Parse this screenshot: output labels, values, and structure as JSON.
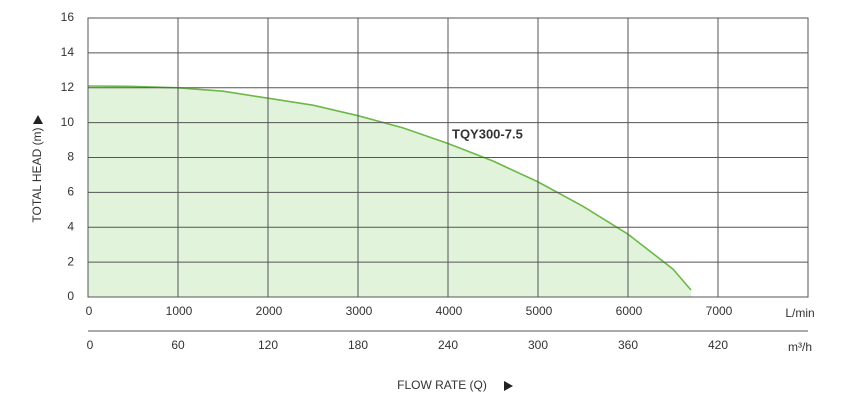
{
  "chart_data": {
    "type": "area",
    "xlabel": "FLOW RATE (Q)",
    "ylabel": "TOTAL HEAD (m)",
    "x_unit": "L/min",
    "x2_unit": "m³/h",
    "x": [
      0,
      500,
      1000,
      1500,
      2000,
      2500,
      3000,
      3500,
      4000,
      4500,
      5000,
      5500,
      6000,
      6500,
      6700
    ],
    "series": [
      {
        "name": "TQY300-7.5",
        "color": "#6db84a",
        "fill": "#e1f3da",
        "values": [
          12.1,
          12.08,
          12.0,
          11.8,
          11.4,
          11.0,
          10.4,
          9.7,
          8.8,
          7.8,
          6.6,
          5.2,
          3.6,
          1.6,
          0.4
        ]
      }
    ],
    "xlim": [
      0,
      8000
    ],
    "xticks": [
      0,
      1000,
      2000,
      3000,
      4000,
      5000,
      6000,
      7000
    ],
    "x2lim": [
      0,
      480
    ],
    "x2ticks": [
      0,
      60,
      120,
      180,
      240,
      300,
      360,
      420
    ],
    "ylim": [
      0,
      16
    ],
    "yticks": [
      0,
      2,
      4,
      6,
      8,
      10,
      12,
      14,
      16
    ],
    "grid": true
  }
}
